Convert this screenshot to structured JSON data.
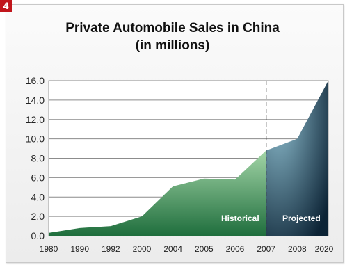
{
  "badge": "4",
  "chart_data": {
    "type": "area",
    "title": "Private Automobile Sales in China",
    "subtitle": "(in millions)",
    "categories": [
      "1980",
      "1990",
      "1992",
      "2000",
      "2004",
      "2005",
      "2006",
      "2007",
      "2008",
      "2020"
    ],
    "series": [
      {
        "values": [
          0.3,
          0.8,
          1.0,
          2.0,
          5.1,
          5.9,
          5.8,
          8.8,
          10.0,
          16.0
        ]
      }
    ],
    "ylim": [
      0,
      16
    ],
    "yticks": [
      "0.0",
      "2.0",
      "4.0",
      "6.0",
      "8.0",
      "10.0",
      "12.0",
      "14.0",
      "16.0"
    ],
    "grid": true,
    "divider_after": "2007",
    "region_labels": [
      "Historical",
      "Projected"
    ],
    "colors": {
      "historical_light": "#a3d5a7",
      "historical_dark": "#1f6e3d",
      "projected_light": "#8fbfd0",
      "projected_dark": "#0c2335"
    }
  }
}
